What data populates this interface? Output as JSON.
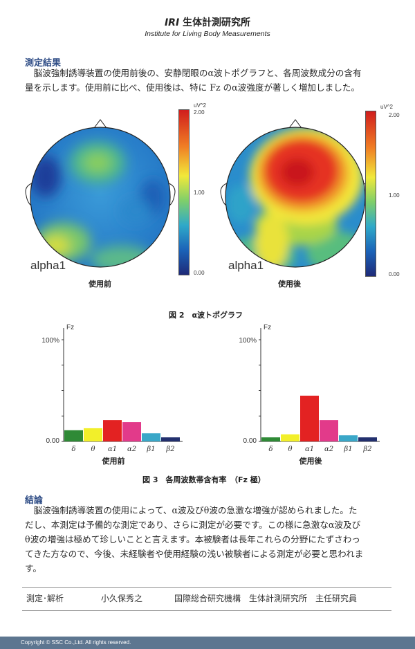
{
  "header": {
    "org_bold": "IRI",
    "org_name": "生体計測研究所",
    "org_english": "Institute for Living Body Measurements"
  },
  "results": {
    "title": "測定結果",
    "lines": [
      "　脳波強制誘導装置の使用前後の、安静閉眼のα波トポグラフと、各周波数成分の含有",
      "量を示します。使用前に比べ、使用後は、特に Fz のα波強度が著しく増加しました。"
    ]
  },
  "topographs": [
    {
      "label": "alpha1",
      "caption": "使用前",
      "colorbar": {
        "unit": "uV^2",
        "ticks": [
          "2.00",
          "1.00",
          "0.00"
        ]
      }
    },
    {
      "label": "alpha1",
      "caption": "使用後",
      "colorbar": {
        "unit": "uV^2",
        "ticks": [
          "2.00",
          "1.00",
          "0.00"
        ]
      }
    }
  ],
  "figure2_caption": "図 2　α波トポグラフ",
  "figure3_caption": "図 3　各周波数帯含有率　（Fz 極）",
  "chart_data": [
    {
      "type": "bar",
      "title": "使用前",
      "ylabel": "Fz",
      "ylim": [
        0,
        100
      ],
      "ytick_labels": [
        "100%",
        "0.00"
      ],
      "categories": [
        "δ",
        "θ",
        "α1",
        "α2",
        "β1",
        "β2"
      ],
      "values": [
        11,
        13,
        21,
        19,
        8,
        4
      ],
      "colors": [
        "#2f8a36",
        "#f2ef2a",
        "#e32222",
        "#e23a8a",
        "#3aa7c8",
        "#23306e"
      ]
    },
    {
      "type": "bar",
      "title": "使用後",
      "ylabel": "Fz",
      "ylim": [
        0,
        100
      ],
      "ytick_labels": [
        "100%",
        "0.00"
      ],
      "categories": [
        "δ",
        "θ",
        "α1",
        "α2",
        "β1",
        "β2"
      ],
      "values": [
        4,
        7,
        45,
        21,
        6,
        4
      ],
      "colors": [
        "#2f8a36",
        "#f2ef2a",
        "#e32222",
        "#e23a8a",
        "#3aa7c8",
        "#23306e"
      ]
    }
  ],
  "conclusion": {
    "title": "結論",
    "lines": [
      "　脳波強制誘導装置の使用によって、α波及びθ波の急激な増強が認められました。た",
      "だし、本測定は予備的な測定であり、さらに測定が必要です。この様に急激なα波及び",
      "θ波の増強は極めて珍しいことと言えます。本被験者は長年これらの分野にたずさわっ",
      "てきた方なので、今後、未経験者や使用経験の浅い被験者による測定が必要と思われま",
      "す。"
    ]
  },
  "signature": {
    "role": "測定･解析",
    "name": "小久保秀之",
    "affiliation": "国際総合研究機構　生体計測研究所　主任研究員"
  },
  "footer": {
    "copyright": "Copyright © SSC Co.,Ltd. All rights reserved."
  }
}
